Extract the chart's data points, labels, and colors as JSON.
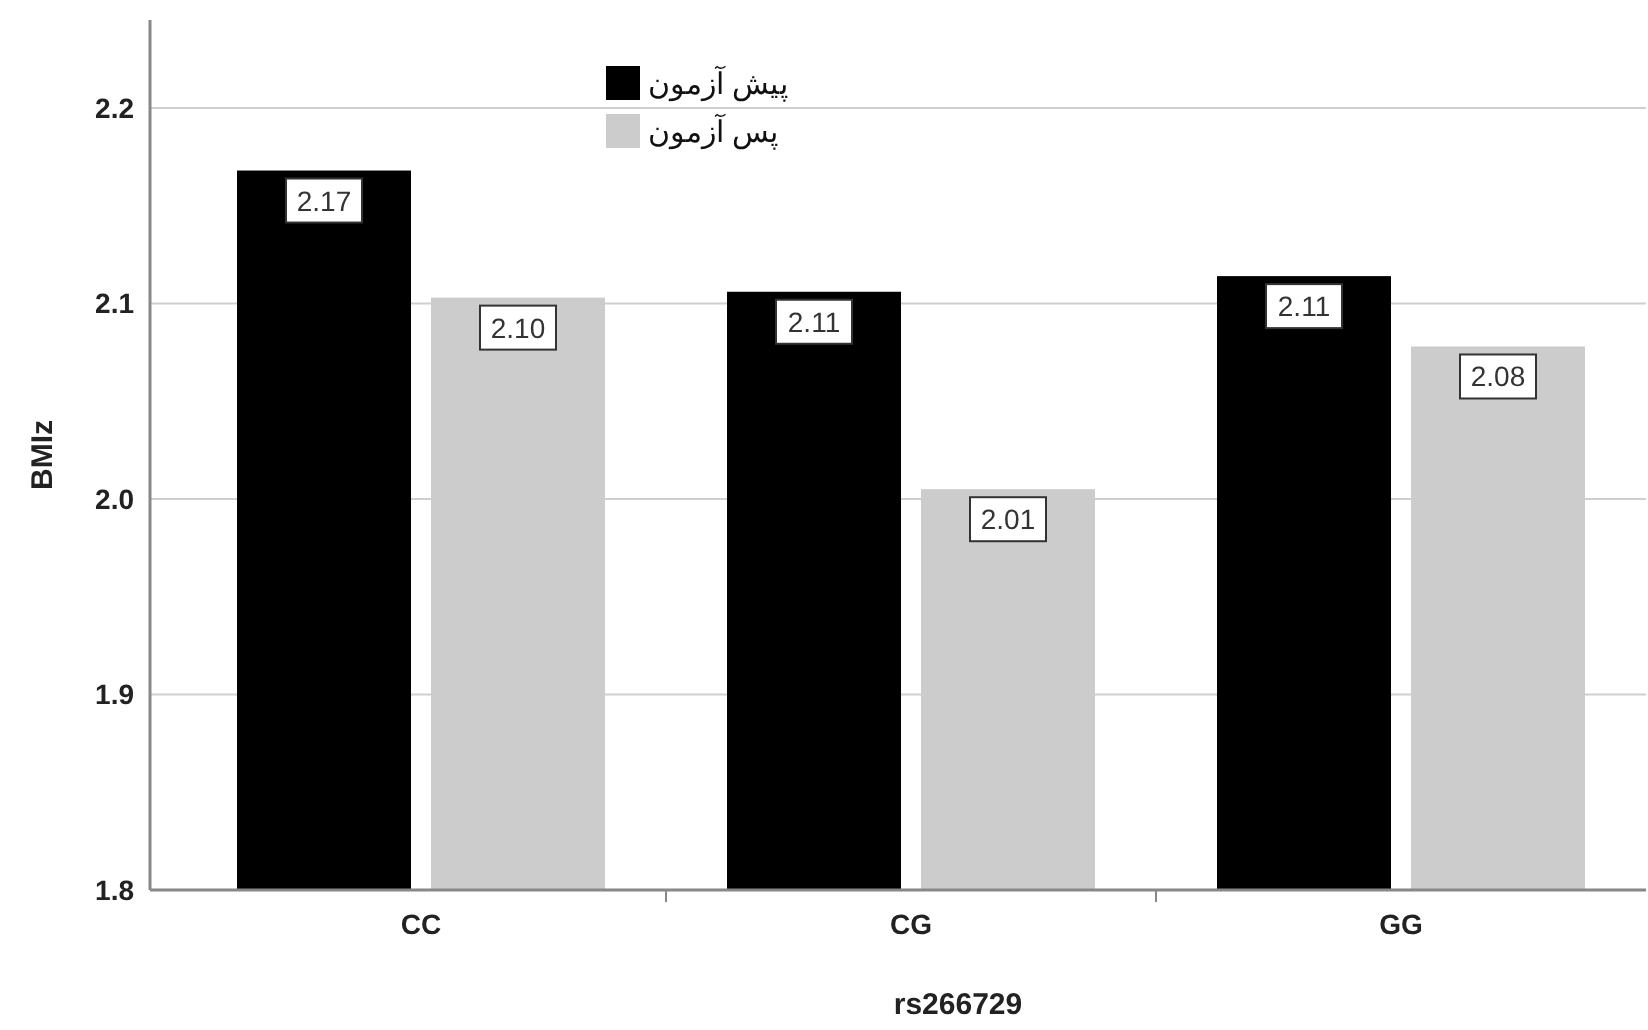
{
  "chart_data": {
    "type": "bar",
    "xlabel": "rs266729",
    "ylabel": "BMIz",
    "categories": [
      "CC",
      "CG",
      "GG"
    ],
    "series": [
      {
        "name": "پیش آزمون",
        "color": "#000000",
        "values": [
          2.168,
          2.106,
          2.114
        ],
        "value_labels": [
          "2.17",
          "2.11",
          "2.11"
        ]
      },
      {
        "name": "پس آزمون",
        "color": "#cccccc",
        "values": [
          2.103,
          2.005,
          2.078
        ],
        "value_labels": [
          "2.10",
          "2.01",
          "2.08"
        ]
      }
    ],
    "ylim": [
      1.8,
      2.245
    ],
    "yticks": [
      {
        "value": 1.8,
        "label": "1.8"
      },
      {
        "value": 1.9,
        "label": "1.9"
      },
      {
        "value": 2.0,
        "label": "2.0"
      },
      {
        "value": 2.1,
        "label": "2.1"
      },
      {
        "value": 2.2,
        "label": "2.2"
      }
    ],
    "grid": "y",
    "legend": "top"
  }
}
